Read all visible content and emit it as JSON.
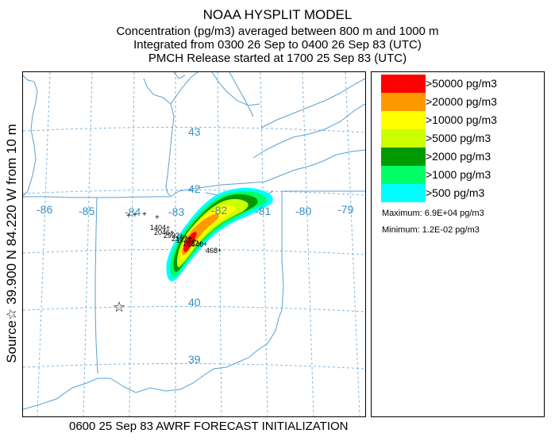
{
  "header": {
    "title": "NOAA HYSPLIT MODEL",
    "line2": "Concentration  (pg/m3) averaged between   800 m and  1000 m",
    "line3": "Integrated from 0300 26 Sep to 0400 26 Sep 83 (UTC)",
    "line4": "PMCH Release started at 1700 25 Sep 83 (UTC)"
  },
  "side_label": "Source☆ 39.900  N  84.220  W   from   10 m",
  "footer": "0600 25 Sep 83 AWRF FORECAST INITIALIZATION",
  "map": {
    "lon_labels": [
      "-86",
      "-85",
      "-84",
      "-83",
      "-82",
      "-81",
      "-80",
      "-79"
    ],
    "lat_labels": [
      "43",
      "42",
      "40",
      "39"
    ],
    "source": {
      "lat": 39.9,
      "lon": -84.22,
      "symbol": "☆"
    },
    "trace_marks": [
      "1404+",
      "2046+",
      "2992+",
      "2167+",
      "1777+",
      "1937+",
      "1640+",
      "468+"
    ],
    "colors": {
      "grid": "#7fb7dd",
      "boundaries": "#5aa0cf",
      "ticks": "#3a8fc4"
    }
  },
  "legend": {
    "items": [
      {
        "label": ">50000 pg/m3",
        "color": "#ff0000"
      },
      {
        "label": ">20000 pg/m3",
        "color": "#ff9900"
      },
      {
        "label": ">10000 pg/m3",
        "color": "#ffff00"
      },
      {
        "label": ">5000 pg/m3",
        "color": "#ccff00"
      },
      {
        "label": ">2000 pg/m3",
        "color": "#009900"
      },
      {
        "label": ">1000 pg/m3",
        "color": "#00ff66"
      },
      {
        "label": ">500 pg/m3",
        "color": "#00ffff"
      }
    ],
    "maximum": "Maximum: 6.9E+04 pg/m3",
    "minimum": "Minimum: 1.2E-02 pg/m3"
  }
}
